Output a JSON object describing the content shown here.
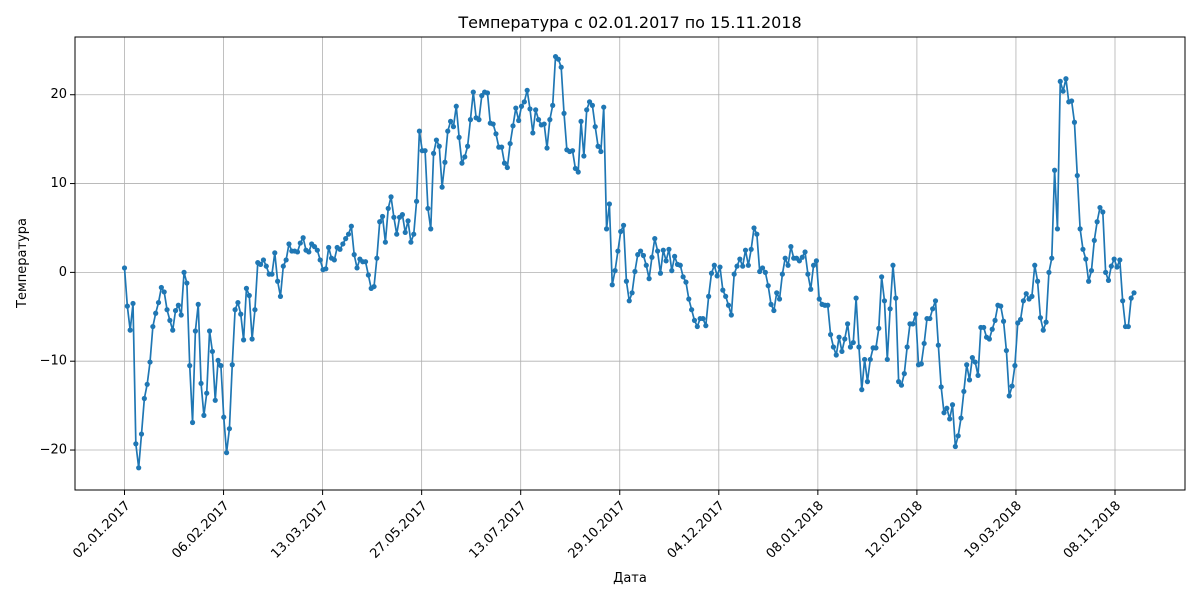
{
  "chart_data": {
    "type": "line",
    "title": "Температура с 02.01.2017 по 15.11.2018",
    "xlabel": "Дата",
    "ylabel": "Температура",
    "x_tick_labels": [
      "02.01.2017",
      "06.02.2017",
      "13.03.2017",
      "27.05.2017",
      "13.07.2017",
      "29.10.2017",
      "04.12.2017",
      "08.01.2018",
      "12.02.2018",
      "19.03.2018",
      "08.11.2018"
    ],
    "y_ticks": [
      -20,
      -10,
      0,
      10,
      20
    ],
    "ylim": [
      -24.5,
      26.5
    ],
    "grid": true,
    "line_color": "#1f77b4",
    "series": [
      {
        "values": [
          0.5,
          -3.8,
          -6.5,
          -3.5,
          -19.3,
          -22.0,
          -18.2,
          -14.2,
          -12.6,
          -10.1,
          -6.1,
          -4.6,
          -3.4,
          -1.7,
          -2.2,
          -4.2,
          -5.4,
          -6.5,
          -4.3,
          -3.7,
          -4.8,
          0.0,
          -1.2,
          -10.5,
          -16.9,
          -6.6,
          -3.6,
          -12.5,
          -16.1,
          -13.6,
          -6.6,
          -8.9,
          -14.4,
          -9.9,
          -10.5,
          -16.3,
          -20.3,
          -17.6,
          -10.4,
          -4.2,
          -3.4,
          -4.7,
          -7.6,
          -1.8,
          -2.6,
          -7.5,
          -4.2,
          1.1,
          0.9,
          1.4,
          0.7,
          -0.2,
          -0.2,
          2.2,
          -1.0,
          -2.7,
          0.7,
          1.4,
          3.2,
          2.4,
          2.4,
          2.3,
          3.3,
          3.9,
          2.5,
          2.3,
          3.2,
          2.9,
          2.5,
          1.4,
          0.3,
          0.4,
          2.8,
          1.6,
          1.4,
          2.8,
          2.6,
          3.2,
          3.8,
          4.3,
          5.2,
          2.0,
          0.5,
          1.5,
          1.2,
          1.2,
          -0.3,
          -1.8,
          -1.6,
          1.6,
          5.7,
          6.3,
          3.4,
          7.2,
          8.5,
          6.2,
          4.3,
          6.2,
          6.5,
          4.5,
          5.8,
          3.4,
          4.3,
          8.0,
          15.9,
          13.7,
          13.7,
          7.2,
          4.9,
          13.4,
          14.9,
          14.2,
          9.6,
          12.4,
          15.9,
          17.0,
          16.4,
          18.7,
          15.2,
          12.3,
          13.0,
          14.2,
          17.2,
          20.3,
          17.4,
          17.2,
          19.9,
          20.3,
          20.2,
          16.8,
          16.7,
          15.6,
          14.1,
          14.1,
          12.3,
          11.8,
          14.5,
          16.5,
          18.5,
          17.1,
          18.7,
          19.2,
          20.5,
          18.4,
          15.7,
          18.3,
          17.2,
          16.6,
          16.7,
          14.0,
          17.2,
          18.8,
          24.3,
          24.0,
          23.1,
          17.9,
          13.8,
          13.6,
          13.7,
          11.7,
          11.3,
          17.0,
          13.1,
          18.3,
          19.2,
          18.8,
          16.4,
          14.2,
          13.6,
          18.6,
          4.9,
          7.7,
          -1.4,
          0.2,
          2.4,
          4.6,
          5.3,
          -1.0,
          -3.2,
          -2.3,
          0.1,
          2.0,
          2.4,
          1.9,
          0.8,
          -0.7,
          1.7,
          3.8,
          2.4,
          -0.1,
          2.5,
          1.3,
          2.6,
          0.2,
          1.8,
          0.9,
          0.8,
          -0.5,
          -1.1,
          -3.0,
          -4.2,
          -5.4,
          -6.1,
          -5.2,
          -5.2,
          -6.0,
          -2.7,
          -0.1,
          0.8,
          -0.4,
          0.6,
          -2.0,
          -2.7,
          -3.7,
          -4.8,
          -0.2,
          0.7,
          1.5,
          0.7,
          2.5,
          0.8,
          2.6,
          5.0,
          4.3,
          0.1,
          0.5,
          0.0,
          -1.5,
          -3.6,
          -4.3,
          -2.3,
          -3.0,
          -0.2,
          1.6,
          0.8,
          2.9,
          1.6,
          1.6,
          1.3,
          1.7,
          2.3,
          -0.2,
          -1.9,
          0.8,
          1.3,
          -3.0,
          -3.6,
          -3.7,
          -3.7,
          -7.0,
          -8.4,
          -9.3,
          -7.3,
          -8.9,
          -7.5,
          -5.8,
          -8.4,
          -7.9,
          -2.9,
          -8.4,
          -13.2,
          -9.8,
          -12.3,
          -9.8,
          -8.5,
          -8.5,
          -6.3,
          -0.5,
          -3.2,
          -9.8,
          -4.1,
          0.8,
          -2.9,
          -12.3,
          -12.7,
          -11.4,
          -8.4,
          -5.8,
          -5.8,
          -4.7,
          -10.4,
          -10.3,
          -8.0,
          -5.2,
          -5.2,
          -4.1,
          -3.2,
          -8.2,
          -12.9,
          -15.8,
          -15.3,
          -16.5,
          -14.9,
          -19.6,
          -18.4,
          -16.4,
          -13.4,
          -10.4,
          -12.1,
          -9.6,
          -10.1,
          -11.6,
          -6.2,
          -6.2,
          -7.3,
          -7.5,
          -6.4,
          -5.4,
          -3.7,
          -3.8,
          -5.5,
          -8.8,
          -13.9,
          -12.8,
          -10.5,
          -5.7,
          -5.3,
          -3.2,
          -2.4,
          -3.0,
          -2.7,
          0.8,
          -1.0,
          -5.1,
          -6.5,
          -5.6,
          0.0,
          1.6,
          11.5,
          4.9,
          21.5,
          20.4,
          21.8,
          19.2,
          19.3,
          16.9,
          10.9,
          4.9,
          2.6,
          1.5,
          -1.0,
          0.2,
          3.6,
          5.7,
          7.3,
          6.8,
          0.0,
          -0.9,
          0.7,
          1.5,
          0.6,
          1.4,
          -3.2,
          -6.1,
          -6.1,
          -2.9,
          -2.3
        ]
      }
    ]
  }
}
